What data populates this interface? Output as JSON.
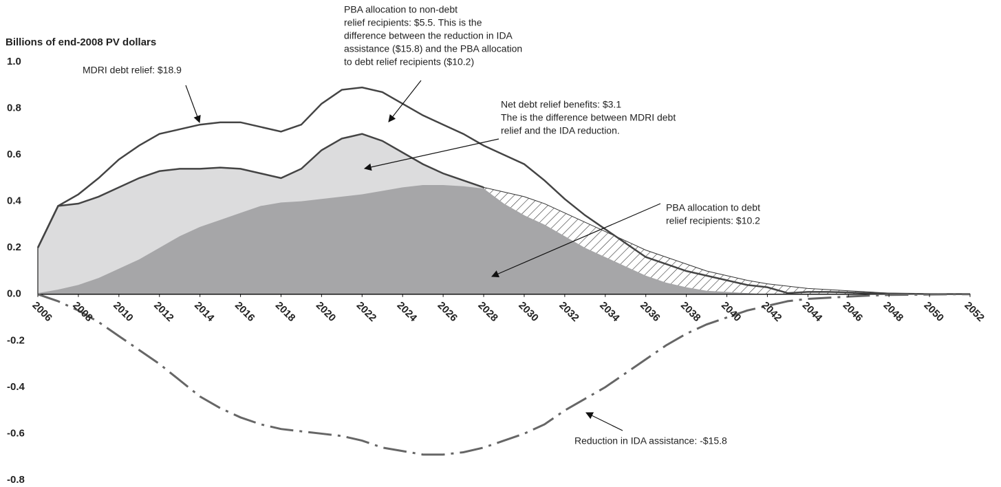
{
  "chart_data": {
    "type": "area",
    "y_label": "Billions of end-2008 PV dollars",
    "x": [
      2006,
      2007,
      2008,
      2009,
      2010,
      2011,
      2012,
      2013,
      2014,
      2015,
      2016,
      2017,
      2018,
      2019,
      2020,
      2021,
      2022,
      2023,
      2024,
      2025,
      2026,
      2027,
      2028,
      2029,
      2030,
      2031,
      2032,
      2033,
      2034,
      2035,
      2036,
      2037,
      2038,
      2039,
      2040,
      2041,
      2042,
      2043,
      2044,
      2045,
      2046,
      2047,
      2048,
      2049,
      2050,
      2051,
      2052
    ],
    "xlim": [
      2006,
      2052
    ],
    "xticks": [
      2006,
      2008,
      2010,
      2012,
      2014,
      2016,
      2018,
      2020,
      2022,
      2024,
      2026,
      2028,
      2030,
      2032,
      2034,
      2036,
      2038,
      2040,
      2042,
      2044,
      2046,
      2048,
      2050,
      2052
    ],
    "ylim": [
      -0.8,
      1.0
    ],
    "yticks": [
      {
        "value": 1.0,
        "label": "1.0"
      },
      {
        "value": 0.8,
        "label": "0.8"
      },
      {
        "value": 0.6,
        "label": "0.6"
      },
      {
        "value": 0.4,
        "label": "0.4"
      },
      {
        "value": 0.2,
        "label": "0.2"
      },
      {
        "value": 0,
        "label": "0.0"
      },
      {
        "value": -0.2,
        "label": "-0.2"
      },
      {
        "value": -0.4,
        "label": "-0.4"
      },
      {
        "value": -0.6,
        "label": "-0.6"
      },
      {
        "value": -0.8,
        "label": "-0.8"
      }
    ],
    "series": [
      {
        "color": "#dcdcdd",
        "fill": true,
        "stroke": "#444444",
        "values": [
          0.2,
          0.38,
          0.39,
          0.42,
          0.46,
          0.5,
          0.53,
          0.54,
          0.54,
          0.545,
          0.54,
          0.52,
          0.5,
          0.54,
          0.62,
          0.67,
          0.69,
          0.66,
          0.61,
          0.56,
          0.52,
          0.49,
          0.46,
          null,
          null,
          null,
          null,
          null,
          null,
          null,
          null,
          null,
          null,
          null,
          null,
          null,
          null,
          null,
          null,
          null,
          null,
          null,
          null,
          null,
          null,
          null,
          null
        ]
      },
      {
        "color": "#333333",
        "hatch": true,
        "values": [
          null,
          null,
          null,
          null,
          null,
          null,
          null,
          null,
          null,
          null,
          null,
          null,
          null,
          null,
          null,
          null,
          null,
          null,
          null,
          null,
          null,
          null,
          0.46,
          0.44,
          0.42,
          0.39,
          0.35,
          0.31,
          0.27,
          0.23,
          0.19,
          0.16,
          0.13,
          0.1,
          0.08,
          0.06,
          0.045,
          0.035,
          0.025,
          0.02,
          0.015,
          0.01,
          0.005,
          0.003,
          0.002,
          0.001,
          0.001
        ]
      },
      {
        "color": "#a6a6a8",
        "fill": true,
        "values": [
          0.005,
          0.02,
          0.04,
          0.07,
          0.11,
          0.15,
          0.2,
          0.25,
          0.29,
          0.32,
          0.35,
          0.38,
          0.395,
          0.4,
          0.41,
          0.42,
          0.43,
          0.445,
          0.46,
          0.47,
          0.47,
          0.465,
          0.455,
          0.39,
          0.34,
          0.3,
          0.25,
          0.2,
          0.16,
          0.12,
          0.08,
          0.05,
          0.03,
          0.015,
          0.01,
          0.005,
          0,
          0,
          0,
          0,
          0,
          0,
          0,
          0,
          0,
          0,
          0
        ]
      },
      {
        "color": "#444444",
        "values": [
          0.2,
          0.38,
          0.43,
          0.5,
          0.58,
          0.64,
          0.69,
          0.71,
          0.73,
          0.74,
          0.74,
          0.72,
          0.7,
          0.73,
          0.82,
          0.88,
          0.89,
          0.87,
          0.82,
          0.77,
          0.73,
          0.69,
          0.64,
          0.6,
          0.56,
          0.49,
          0.41,
          0.34,
          0.28,
          0.22,
          0.16,
          0.13,
          0.1,
          0.08,
          0.06,
          0.04,
          0.03,
          0.005,
          0.01,
          0.01,
          0.008,
          0.005,
          0.003,
          0.002,
          0.001,
          0.001,
          0.001
        ]
      },
      {
        "color": "#666666",
        "dash": true,
        "values": [
          0,
          -0.03,
          -0.07,
          -0.12,
          -0.18,
          -0.24,
          -0.3,
          -0.37,
          -0.44,
          -0.49,
          -0.53,
          -0.56,
          -0.58,
          -0.59,
          -0.6,
          -0.61,
          -0.63,
          -0.66,
          -0.675,
          -0.69,
          -0.69,
          -0.68,
          -0.66,
          -0.63,
          -0.6,
          -0.56,
          -0.5,
          -0.45,
          -0.4,
          -0.34,
          -0.28,
          -0.22,
          -0.17,
          -0.13,
          -0.1,
          -0.07,
          -0.05,
          -0.03,
          -0.02,
          -0.015,
          -0.01,
          -0.006,
          -0.003,
          -0.002,
          -0.001,
          0,
          0
        ]
      }
    ],
    "annotations": [
      [
        "MDRI debt relief: $18.9"
      ],
      [
        "PBA allocation to non-debt",
        "relief recipients: $5.5. This is the",
        "difference between the reduction in IDA",
        "assistance ($15.8) and the PBA allocation",
        "to debt relief recipients ($10.2)"
      ],
      [
        "Net debt relief benefits: $3.1",
        "The is the difference between MDRI debt",
        "relief and the IDA reduction."
      ],
      [
        "PBA allocation to debt",
        "relief recipients: $10.2"
      ],
      [
        "Reduction in IDA assistance: -$15.8"
      ]
    ]
  }
}
